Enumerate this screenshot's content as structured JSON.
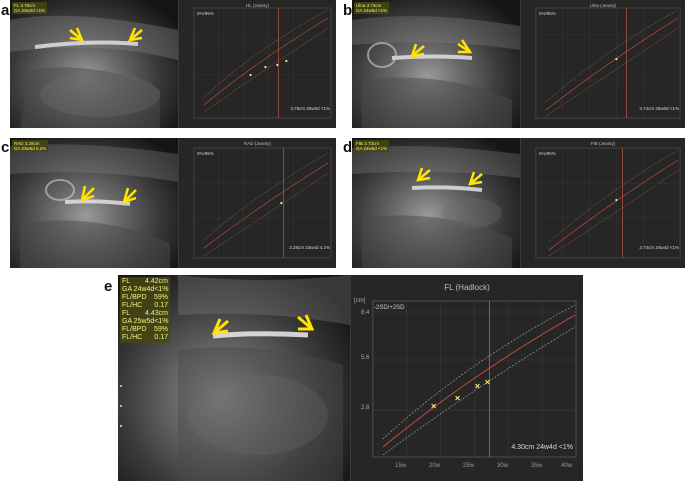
{
  "panels": {
    "a": {
      "letter": "a",
      "meas_lines": [
        "FL 3.76cm",
        "GA 23w2d <1%"
      ],
      "graph_title": "HL (Jeanty)",
      "sd_label": "5%/95%",
      "result": "3.78cm 25w0d <1%"
    },
    "b": {
      "letter": "b",
      "meas_lines": [
        "Ulna 3.73cm",
        "GA 24w5d <1%"
      ],
      "graph_title": "Ulna (Jeanty)",
      "sd_label": "5%/95%",
      "result": "3.74cm 26w0d <1%"
    },
    "c": {
      "letter": "c",
      "meas_lines": [
        "RAD 3.28cm",
        "GA 23w6d 5.2%"
      ],
      "graph_title": "RAD (Jeanty)",
      "sd_label": "5%/95%",
      "result": "3.28cm 23w4d 4.2%"
    },
    "d": {
      "letter": "d",
      "meas_lines": [
        "FIB 3.73cm",
        "GA 24w5d <1%"
      ],
      "graph_title": "FIB (Jeanty)",
      "sd_label": "5%/95%",
      "result": "3.74cm 24w4d <1%"
    },
    "e": {
      "letter": "e",
      "meas_rows": [
        {
          "label": "FL",
          "value": "4.42cm"
        },
        {
          "label": "GA 24w4d",
          "value": "<1%"
        },
        {
          "label": "FL/BPD",
          "value": "59%"
        },
        {
          "label": "FL/HC",
          "value": "0.17"
        },
        {
          "label": "FL",
          "value": "4.43cm"
        },
        {
          "label": "GA 25w5d",
          "value": "<1%"
        },
        {
          "label": "FL/BPD",
          "value": "59%"
        },
        {
          "label": "FL/HC",
          "value": "0.17"
        }
      ],
      "graph_title": "FL (Hadlock)",
      "unit": "[cm]",
      "sd_label": "-2SD/+2SD",
      "y_ticks": [
        "8.4",
        "5.6",
        "2.8"
      ],
      "x_ticks": [
        "15w",
        "20w",
        "25w",
        "30w",
        "35w",
        "40w"
      ],
      "result": "4.30cm 24w4d <1%"
    }
  },
  "colors": {
    "arrow": "#ffe400",
    "curve_mean": "#d84a3a",
    "curve_sd": "#c06a5a",
    "marker": "#f5f07a",
    "ga_line": "#c8653a"
  }
}
